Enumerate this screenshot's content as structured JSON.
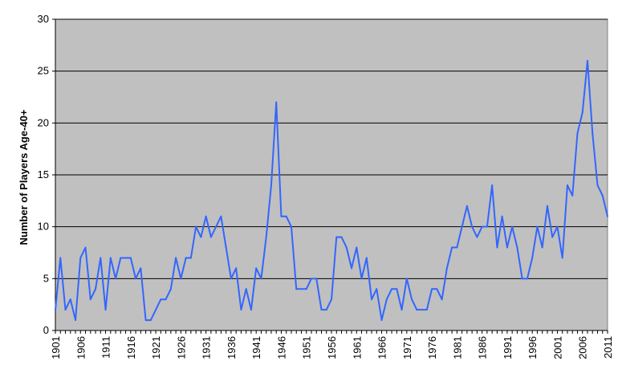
{
  "colors": {
    "plot_background": "#c0c0c0",
    "line": "#3366ff",
    "gridline": "#000000",
    "page_background": "#ffffff"
  },
  "chart_data": {
    "type": "line",
    "title": "",
    "xlabel": "",
    "ylabel": "Number of Players Age-40+",
    "ylim": [
      0,
      30
    ],
    "xlim": [
      1901,
      2011
    ],
    "yticks": [
      "0",
      "5",
      "10",
      "15",
      "20",
      "25",
      "30"
    ],
    "xticks": [
      "1901",
      "1906",
      "1911",
      "1916",
      "1921",
      "1926",
      "1931",
      "1936",
      "1941",
      "1946",
      "1951",
      "1956",
      "1961",
      "1966",
      "1971",
      "1976",
      "1981",
      "1986",
      "1991",
      "1996",
      "2001",
      "2006",
      "2011"
    ],
    "grid": "horizontal",
    "legend": "none",
    "series": [
      {
        "x": [
          1901,
          1902,
          1903,
          1904,
          1905,
          1906,
          1907,
          1908,
          1909,
          1910,
          1911,
          1912,
          1913,
          1914,
          1915,
          1916,
          1917,
          1918,
          1919,
          1920,
          1921,
          1922,
          1923,
          1924,
          1925,
          1926,
          1927,
          1928,
          1929,
          1930,
          1931,
          1932,
          1933,
          1934,
          1935,
          1936,
          1937,
          1938,
          1939,
          1940,
          1941,
          1942,
          1943,
          1944,
          1945,
          1946,
          1947,
          1948,
          1949,
          1950,
          1951,
          1952,
          1953,
          1954,
          1955,
          1956,
          1957,
          1958,
          1959,
          1960,
          1961,
          1962,
          1963,
          1964,
          1965,
          1966,
          1967,
          1968,
          1969,
          1970,
          1971,
          1972,
          1973,
          1974,
          1975,
          1976,
          1977,
          1978,
          1979,
          1980,
          1981,
          1982,
          1983,
          1984,
          1985,
          1986,
          1987,
          1988,
          1989,
          1990,
          1991,
          1992,
          1993,
          1994,
          1995,
          1996,
          1997,
          1998,
          1999,
          2000,
          2001,
          2002,
          2003,
          2004,
          2005,
          2006,
          2007,
          2008,
          2009,
          2010,
          2011
        ],
        "y": [
          2,
          7,
          2,
          3,
          1,
          7,
          8,
          3,
          4,
          7,
          2,
          7,
          5,
          7,
          7,
          7,
          5,
          6,
          1,
          1,
          2,
          3,
          3,
          4,
          7,
          5,
          7,
          7,
          10,
          9,
          11,
          9,
          10,
          11,
          8,
          5,
          6,
          2,
          4,
          2,
          6,
          5,
          9,
          14,
          22,
          11,
          11,
          10,
          4,
          4,
          4,
          5,
          5,
          2,
          2,
          3,
          9,
          9,
          8,
          6,
          8,
          5,
          7,
          3,
          4,
          1,
          3,
          4,
          4,
          2,
          5,
          3,
          2,
          2,
          2,
          4,
          4,
          3,
          6,
          8,
          8,
          10,
          12,
          10,
          9,
          10,
          10,
          14,
          8,
          11,
          8,
          10,
          8,
          5,
          5,
          7,
          10,
          8,
          12,
          9,
          10,
          7,
          14,
          13,
          19,
          21,
          26,
          19,
          14,
          13,
          11
        ]
      }
    ]
  }
}
